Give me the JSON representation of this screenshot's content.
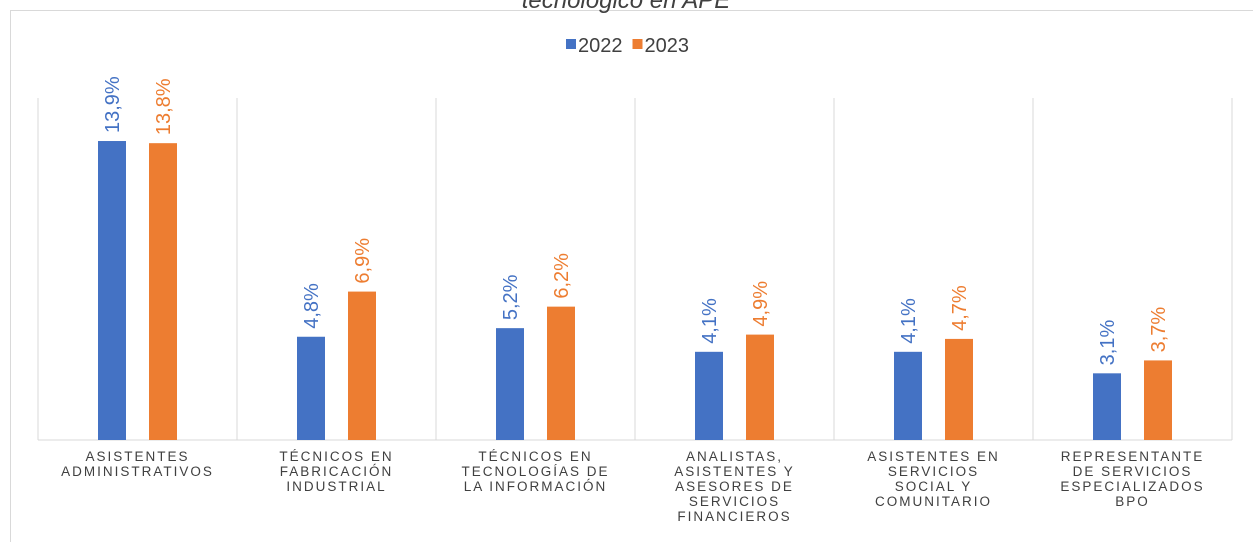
{
  "chart_data": {
    "type": "bar",
    "title": "tecnológico en APE",
    "categories": [
      "ASISTENTES\nADMINISTRATIVOS",
      "TÉCNICOS EN\nFABRICACIÓN\nINDUSTRIAL",
      "TÉCNICOS EN\nTECNOLOGÍAS DE\nLA INFORMACIÓN",
      "ANALISTAS,\nASISTENTES Y\nASESORES DE\nSERVICIOS\nFINANCIEROS",
      "ASISTENTES EN\nSERVICIOS\nSOCIAL Y\nCOMUNITARIO",
      "REPRESENTANTE\nDE SERVICIOS\nESPECIALIZADOS\nBPO"
    ],
    "series": [
      {
        "name": "2022",
        "color": "#4472c4",
        "values": [
          13.9,
          4.8,
          5.2,
          4.1,
          4.1,
          3.1
        ],
        "value_labels": [
          "13,9%",
          "4,8%",
          "5,2%",
          "4,1%",
          "4,1%",
          "3,1%"
        ]
      },
      {
        "name": "2023",
        "color": "#ed7d31",
        "values": [
          13.8,
          6.9,
          6.2,
          4.9,
          4.7,
          3.7
        ],
        "value_labels": [
          "13,8%",
          "6,9%",
          "6,2%",
          "4,9%",
          "4,7%",
          "3,7%"
        ]
      }
    ],
    "ylim": [
      0,
      15.9
    ]
  }
}
